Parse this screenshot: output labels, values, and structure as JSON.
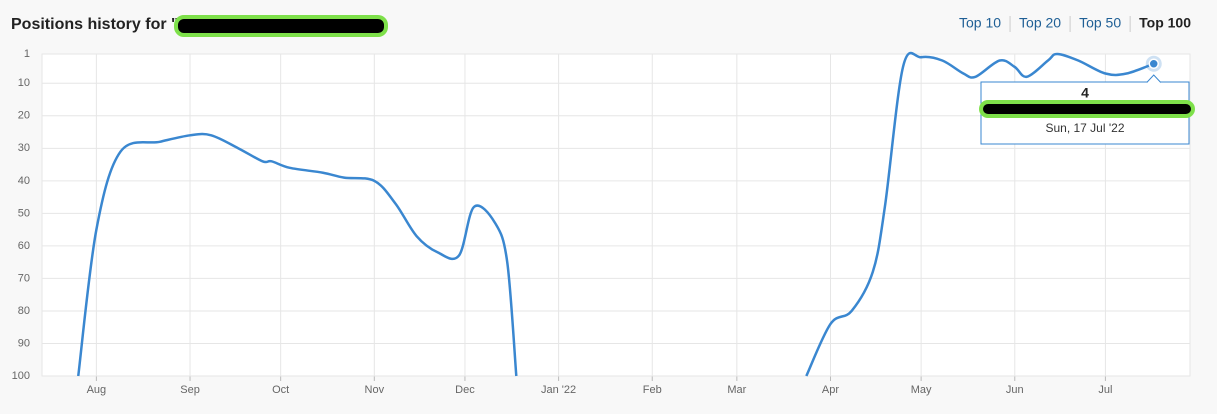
{
  "header": {
    "title": "Positions history for \""
  },
  "tabs": [
    "Top 10",
    "Top 20",
    "Top 50",
    "Top 100"
  ],
  "active_tab": 3,
  "chart_data": {
    "type": "line",
    "x": [
      "2021-07-26",
      "2021-08-01",
      "2021-08-09",
      "2021-08-22",
      "2021-09-01",
      "2021-09-08",
      "2021-09-17",
      "2021-09-25",
      "2021-09-28",
      "2021-10-04",
      "2021-10-15",
      "2021-10-22",
      "2021-11-01",
      "2021-11-08",
      "2021-11-15",
      "2021-11-22",
      "2021-11-29",
      "2021-12-04",
      "2021-12-11",
      "2021-12-15",
      "2021-12-18",
      null,
      "2022-03-24",
      "2022-04-01",
      "2022-04-08",
      "2022-04-15",
      "2022-04-19",
      "2022-04-25",
      "2022-05-01",
      "2022-05-08",
      "2022-05-15",
      "2022-05-19",
      "2022-05-27",
      "2022-06-01",
      "2022-06-05",
      "2022-06-12",
      "2022-06-15",
      "2022-06-22",
      "2022-07-01",
      "2022-07-08",
      "2022-07-17"
    ],
    "series": [
      {
        "name": "Position",
        "color": "#3a87d0",
        "values": [
          100,
          55,
          31,
          28,
          26,
          26,
          30,
          34,
          34,
          36,
          37.5,
          39,
          40,
          47,
          57,
          62,
          63,
          48,
          53,
          65,
          100,
          null,
          100,
          84,
          80,
          68,
          48,
          5,
          2,
          3,
          7,
          8,
          3,
          5,
          8,
          3,
          1,
          3,
          7,
          7,
          4
        ]
      }
    ],
    "xlim": [
      "2021-07-14",
      "2022-07-29"
    ],
    "xticks": [
      {
        "value": "2021-08-01",
        "label": "Aug"
      },
      {
        "value": "2021-09-01",
        "label": "Sep"
      },
      {
        "value": "2021-10-01",
        "label": "Oct"
      },
      {
        "value": "2021-11-01",
        "label": "Nov"
      },
      {
        "value": "2021-12-01",
        "label": "Dec"
      },
      {
        "value": "2022-01-01",
        "label": "Jan '22"
      },
      {
        "value": "2022-02-01",
        "label": "Feb"
      },
      {
        "value": "2022-03-01",
        "label": "Mar"
      },
      {
        "value": "2022-04-01",
        "label": "Apr"
      },
      {
        "value": "2022-05-01",
        "label": "May"
      },
      {
        "value": "2022-06-01",
        "label": "Jun"
      },
      {
        "value": "2022-07-01",
        "label": "Jul"
      }
    ],
    "ylim": [
      100,
      1
    ],
    "yticks": [
      1,
      10,
      20,
      30,
      40,
      50,
      60,
      70,
      80,
      90,
      100
    ],
    "grid": true,
    "tooltip": {
      "index": 40,
      "date": "Sun, 17 Jul '22"
    }
  }
}
